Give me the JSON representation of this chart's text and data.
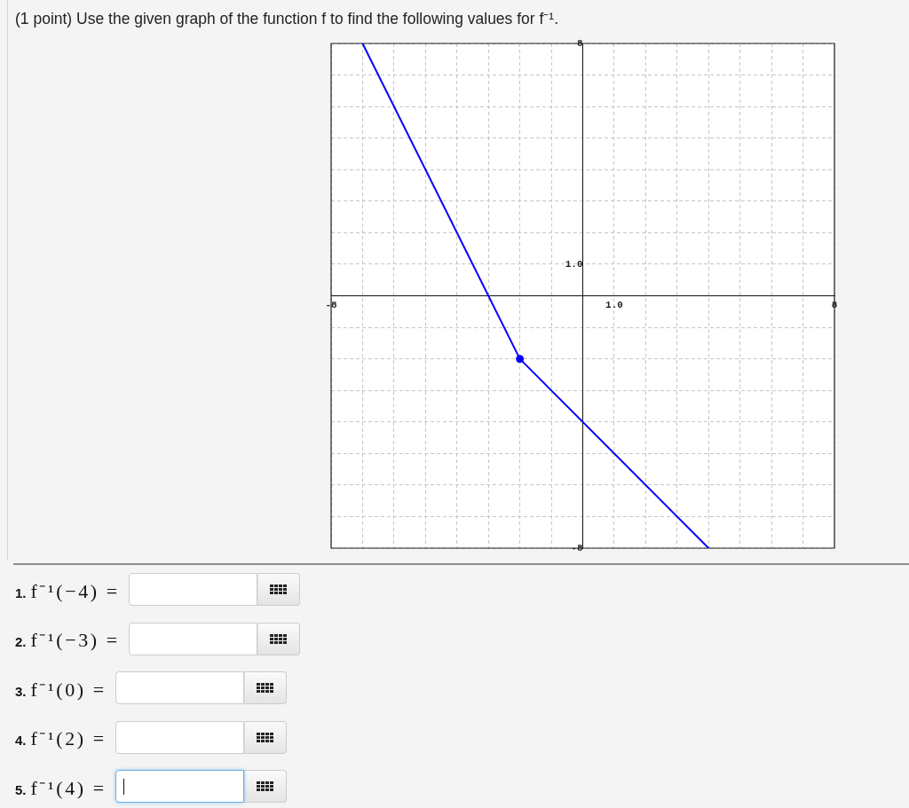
{
  "chart_data": {
    "type": "line",
    "title": "(1 point) Use the given graph of the function f to find the following values for f⁻¹.",
    "annotations": [
      "1. f⁻¹(−4) =",
      "2. f⁻¹(−3) =",
      "3. f⁻¹(0) =",
      "4. f⁻¹(2) =",
      "5. f⁻¹(4) ="
    ],
    "series": [
      {
        "type": "line",
        "x": [
          -7,
          -2,
          4
        ],
        "values": [
          8,
          -2,
          -8
        ],
        "color": "#0000ff",
        "marker": "none"
      },
      {
        "type": "scatter",
        "x": [
          -2
        ],
        "values": [
          -2
        ],
        "color": "#0000ff",
        "marker": "circle"
      }
    ],
    "xlim": [
      -8,
      8
    ],
    "ylim": [
      -8,
      8
    ],
    "xticks": [
      -8,
      {
        "value": -7,
        "label": null
      },
      {
        "value": -6,
        "label": null
      },
      {
        "value": -5,
        "label": null
      },
      {
        "value": -4,
        "label": null
      },
      {
        "value": -3,
        "label": null
      },
      {
        "value": -2,
        "label": null
      },
      {
        "value": -1,
        "label": null
      },
      {
        "value": 0,
        "label": null
      },
      {
        "value": 1,
        "label": "1.0"
      },
      {
        "value": 2,
        "label": null
      },
      {
        "value": 3,
        "label": null
      },
      {
        "value": 4,
        "label": null
      },
      {
        "value": 5,
        "label": null
      },
      {
        "value": 6,
        "label": null
      },
      {
        "value": 7,
        "label": null
      },
      8
    ],
    "yticks": [
      -8,
      {
        "value": -7,
        "label": null
      },
      {
        "value": -6,
        "label": null
      },
      {
        "value": -5,
        "label": null
      },
      {
        "value": -4,
        "label": null
      },
      {
        "value": -3,
        "label": null
      },
      {
        "value": -2,
        "label": null
      },
      {
        "value": -1,
        "label": null
      },
      {
        "value": 0,
        "label": null
      },
      {
        "value": 1,
        "label": "1.0"
      },
      {
        "value": 2,
        "label": null
      },
      {
        "value": 3,
        "label": null
      },
      {
        "value": 4,
        "label": null
      },
      {
        "value": 5,
        "label": null
      },
      {
        "value": 6,
        "label": null
      },
      {
        "value": 7,
        "label": null
      },
      8
    ],
    "grid": true
  }
}
